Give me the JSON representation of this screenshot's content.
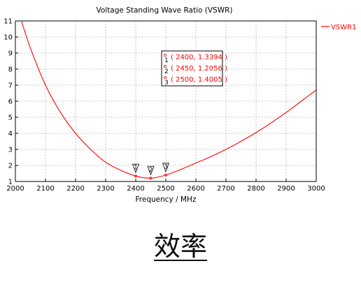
{
  "chart_data": {
    "type": "line",
    "title": "Voltage Standing Wave Ratio (VSWR)",
    "xlabel": "Frequency / MHz",
    "ylabel": "",
    "xlim": [
      2000,
      3000
    ],
    "ylim": [
      1,
      11
    ],
    "x_ticks": [
      "2000",
      "2100",
      "2200",
      "2300",
      "2400",
      "2500",
      "2600",
      "2700",
      "2800",
      "2900",
      "3000"
    ],
    "y_ticks": [
      "1",
      "2",
      "3",
      "4",
      "5",
      "6",
      "7",
      "8",
      "9",
      "10",
      "11"
    ],
    "grid": true,
    "legend_position": "top-right",
    "series": [
      {
        "name": "VSWR1",
        "color": "#ff0000",
        "x": [
          2020,
          2050,
          2100,
          2150,
          2200,
          2250,
          2300,
          2350,
          2400,
          2450,
          2500,
          2550,
          2600,
          2650,
          2700,
          2750,
          2800,
          2850,
          2900,
          2950,
          3000
        ],
        "y": [
          11.0,
          9.3,
          7.0,
          5.3,
          4.0,
          3.0,
          2.2,
          1.7,
          1.3394,
          1.2056,
          1.4005,
          1.75,
          2.15,
          2.55,
          3.0,
          3.5,
          4.05,
          4.65,
          5.3,
          6.0,
          6.7
        ]
      }
    ],
    "markers": [
      {
        "id": "1",
        "x": 2400,
        "y": 1.3394,
        "label": "( 2400, 1.3394 )"
      },
      {
        "id": "2",
        "x": 2450,
        "y": 1.2056,
        "label": "( 2450, 1.2056 )"
      },
      {
        "id": "3",
        "x": 2500,
        "y": 1.4005,
        "label": "( 2500, 1.4005 )"
      }
    ]
  },
  "caption": "效率"
}
